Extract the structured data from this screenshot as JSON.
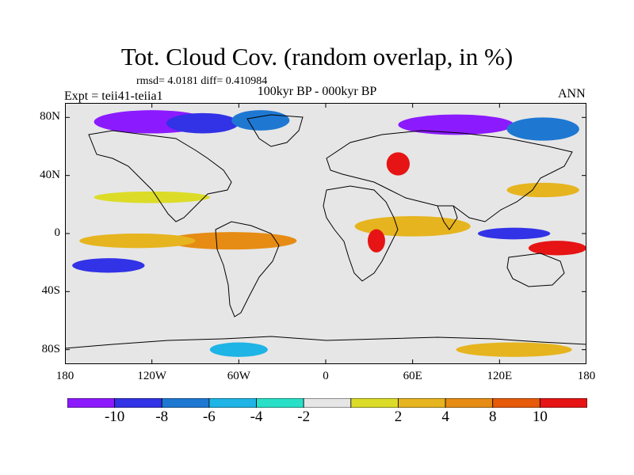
{
  "title": "Tot. Cloud Cov. (random overlap, in %)",
  "stats": "rmsd= 4.0181 diff= 0.410984",
  "experiment": "Expt = teii41-teiia1",
  "period": "100kyr BP - 000kyr BP",
  "season": "ANN",
  "map": {
    "lon_range": [
      -180,
      180
    ],
    "lat_range": [
      -90,
      90
    ],
    "ocean_base_color": "#e6e6e6",
    "coastline_color": "#000000",
    "y_ticks": [
      {
        "lat": 80,
        "label": "80N"
      },
      {
        "lat": 40,
        "label": "40N"
      },
      {
        "lat": 0,
        "label": "0"
      },
      {
        "lat": -40,
        "label": "40S"
      },
      {
        "lat": -80,
        "label": "80S"
      }
    ],
    "x_ticks": [
      {
        "lon": -180,
        "label": "180"
      },
      {
        "lon": -120,
        "label": "120W"
      },
      {
        "lon": -60,
        "label": "60W"
      },
      {
        "lon": 0,
        "label": "0"
      },
      {
        "lon": 60,
        "label": "60E"
      },
      {
        "lon": 120,
        "label": "120E"
      },
      {
        "lon": 180,
        "label": "180"
      }
    ],
    "anomaly_fields": [
      {
        "lon": -120,
        "lat": 77,
        "rx": 40,
        "ry": 8,
        "level": -10
      },
      {
        "lon": -85,
        "lat": 76,
        "rx": 25,
        "ry": 7,
        "level": -8
      },
      {
        "lon": -45,
        "lat": 78,
        "rx": 20,
        "ry": 7,
        "level": -6
      },
      {
        "lon": 90,
        "lat": 75,
        "rx": 40,
        "ry": 7,
        "level": -10
      },
      {
        "lon": 150,
        "lat": 72,
        "rx": 25,
        "ry": 8,
        "level": -6
      },
      {
        "lon": 50,
        "lat": 48,
        "rx": 8,
        "ry": 8,
        "level": 10
      },
      {
        "lon": -65,
        "lat": -5,
        "rx": 45,
        "ry": 6,
        "level": 8
      },
      {
        "lon": -130,
        "lat": -5,
        "rx": 40,
        "ry": 5,
        "level": 4
      },
      {
        "lon": 60,
        "lat": 5,
        "rx": 40,
        "ry": 7,
        "level": 6
      },
      {
        "lon": 35,
        "lat": -5,
        "rx": 6,
        "ry": 8,
        "level": 10
      },
      {
        "lon": 130,
        "lat": 0,
        "rx": 25,
        "ry": 4,
        "level": -8
      },
      {
        "lon": 160,
        "lat": -10,
        "rx": 20,
        "ry": 5,
        "level": 10
      },
      {
        "lon": -150,
        "lat": -22,
        "rx": 25,
        "ry": 5,
        "level": -8
      },
      {
        "lon": -120,
        "lat": 25,
        "rx": 40,
        "ry": 4,
        "level": 3
      },
      {
        "lon": 150,
        "lat": 30,
        "rx": 25,
        "ry": 5,
        "level": 6
      },
      {
        "lon": -60,
        "lat": -80,
        "rx": 20,
        "ry": 5,
        "level": -5
      },
      {
        "lon": 130,
        "lat": -80,
        "rx": 40,
        "ry": 5,
        "level": 6
      }
    ]
  },
  "colorbar": {
    "colors": [
      "#8c1aff",
      "#3232e6",
      "#1e78d2",
      "#1eb4e6",
      "#28e0c8",
      "#e6e6e6",
      "#dcdc28",
      "#e6b41e",
      "#e68c14",
      "#e65a0a",
      "#e61414"
    ],
    "labels": [
      "-10",
      "-8",
      "-6",
      "-4",
      "-2",
      "2",
      "4",
      "8",
      "10"
    ]
  }
}
